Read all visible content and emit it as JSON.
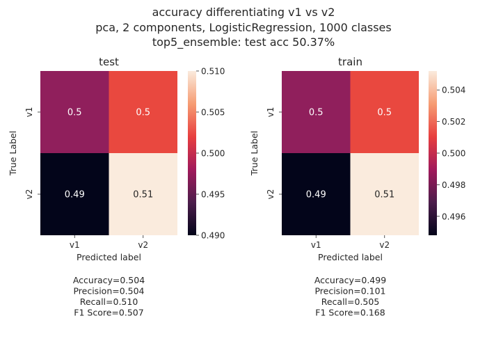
{
  "title_lines": [
    "accuracy differentiating v1 vs v2",
    "pca, 2 components, LogisticRegression, 1000 classes",
    "top5_ensemble: test acc 50.37%"
  ],
  "colormap": [
    "#03051a",
    "#4c1d4b",
    "#a11a5b",
    "#e83f3f",
    "#f69c73",
    "#faebdd"
  ],
  "chart_data": [
    {
      "type": "heatmap",
      "title": "test",
      "xlabel": "Predicted label",
      "ylabel": "True Label",
      "x_categories": [
        "v1",
        "v2"
      ],
      "y_categories": [
        "v1",
        "v2"
      ],
      "values": [
        [
          0.5,
          0.5
        ],
        [
          0.49,
          0.51
        ]
      ],
      "cell_labels": [
        [
          "0.5",
          "0.5"
        ],
        [
          "0.49",
          "0.51"
        ]
      ],
      "cell_colors": [
        [
          "#901f5c",
          "#e9483f"
        ],
        [
          "#03051a",
          "#faebdd"
        ]
      ],
      "colorbar": {
        "range": [
          0.49,
          0.51
        ],
        "ticks": [
          "0.490",
          "0.495",
          "0.500",
          "0.505",
          "0.510"
        ],
        "tick_values": [
          0.49,
          0.495,
          0.5,
          0.505,
          0.51
        ]
      },
      "metrics": [
        "Accuracy=0.504",
        "Precision=0.504",
        "Recall=0.510",
        "F1 Score=0.507"
      ]
    },
    {
      "type": "heatmap",
      "title": "train",
      "xlabel": "Predicted label",
      "ylabel": "True Label",
      "x_categories": [
        "v1",
        "v2"
      ],
      "y_categories": [
        "v1",
        "v2"
      ],
      "values": [
        [
          0.5,
          0.5
        ],
        [
          0.49,
          0.51
        ]
      ],
      "cell_labels": [
        [
          "0.5",
          "0.5"
        ],
        [
          "0.49",
          "0.51"
        ]
      ],
      "cell_colors": [
        [
          "#901f5c",
          "#e9483f"
        ],
        [
          "#03051a",
          "#faebdd"
        ]
      ],
      "colorbar": {
        "range": [
          0.4948,
          0.5052
        ],
        "ticks": [
          "0.496",
          "0.498",
          "0.500",
          "0.502",
          "0.504"
        ],
        "tick_values": [
          0.496,
          0.498,
          0.5,
          0.502,
          0.504
        ]
      },
      "metrics": [
        "Accuracy=0.499",
        "Precision=0.101",
        "Recall=0.505",
        "F1 Score=0.168"
      ]
    }
  ]
}
